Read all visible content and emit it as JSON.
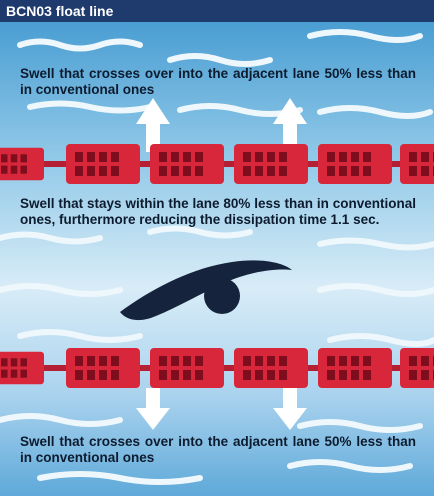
{
  "title": "BCN03 float line",
  "captions": {
    "top": "Swell that crosses  over into the adjacent lane 50% less than in conventional ones",
    "middle": "Swell that stays within the lane 80% less than in conventional ones, furthermore reducing the dissipation time 1.1 sec.",
    "bottom": "Swell that crosses  over into the adjacent lane 50% less than in conventional ones"
  },
  "colors": {
    "title_bar": "#1f3b6e",
    "float_red": "#d8263a",
    "float_dark": "#7e0d1e",
    "swimmer": "#16233c",
    "wave": "#eef7fc",
    "arrow": "#ffffff"
  },
  "icons": [
    "swimmer-icon",
    "arrow-up-icon",
    "arrow-down-icon",
    "wave-icon"
  ]
}
